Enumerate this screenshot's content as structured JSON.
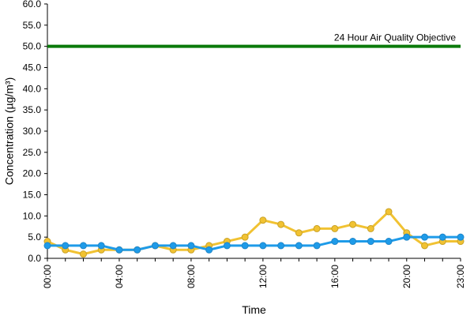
{
  "chart_data": {
    "type": "line",
    "xlabel": "Time",
    "ylabel": "Concentration (µg/m³)",
    "ylim": [
      0,
      60
    ],
    "y_ticks": [
      "0.0",
      "5.0",
      "10.0",
      "15.0",
      "20.0",
      "25.0",
      "30.0",
      "35.0",
      "40.0",
      "45.0",
      "50.0",
      "55.0",
      "60.0"
    ],
    "x_ticks": [
      {
        "hour": 0,
        "label": "00:00"
      },
      {
        "hour": 4,
        "label": "04:00"
      },
      {
        "hour": 8,
        "label": "08:00"
      },
      {
        "hour": 12,
        "label": "12:00"
      },
      {
        "hour": 16,
        "label": "16:00"
      },
      {
        "hour": 20,
        "label": "20:00"
      },
      {
        "hour": 23,
        "label": "23:00"
      }
    ],
    "x": [
      0,
      1,
      2,
      3,
      4,
      5,
      6,
      7,
      8,
      9,
      10,
      11,
      12,
      13,
      14,
      15,
      16,
      17,
      18,
      19,
      20,
      21,
      22,
      23
    ],
    "series": [
      {
        "color": "#f1c232",
        "marker_stroke": "#c9a227",
        "values": [
          4,
          2,
          1,
          2,
          2,
          2,
          3,
          2,
          2,
          3,
          4,
          5,
          9,
          8,
          6,
          7,
          7,
          8,
          7,
          11,
          6,
          3,
          4,
          4
        ]
      },
      {
        "color": "#1e9be9",
        "marker_stroke": "#1e86c9",
        "values": [
          3,
          3,
          3,
          3,
          2,
          2,
          3,
          3,
          3,
          2,
          3,
          3,
          3,
          3,
          3,
          3,
          4,
          4,
          4,
          4,
          5,
          5,
          5,
          5
        ]
      }
    ],
    "objective": {
      "value": 50,
      "label": "24 Hour Air Quality Objective",
      "color": "#0a7a0a"
    },
    "grid": false
  }
}
